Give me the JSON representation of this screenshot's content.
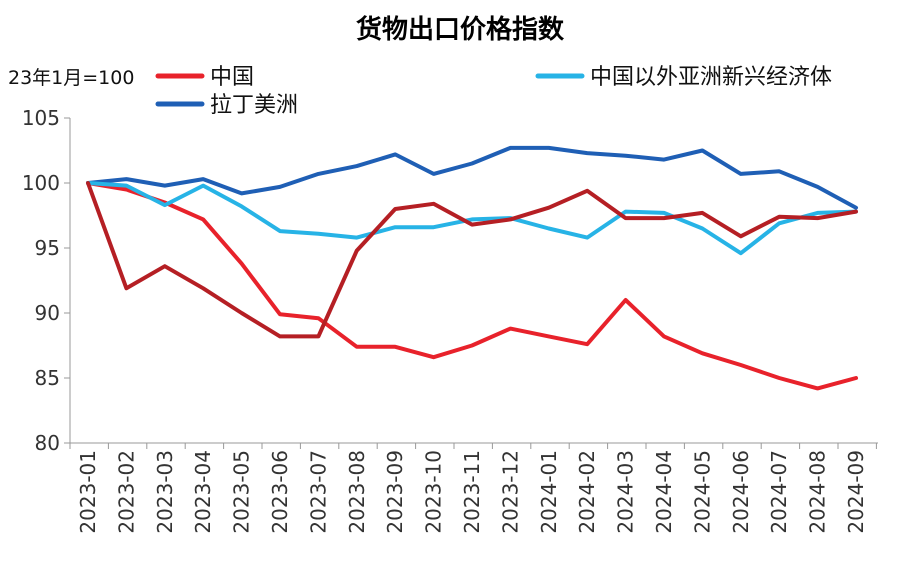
{
  "chart_data": {
    "type": "line",
    "title": "货物出口价格指数",
    "note": "23年1月=100",
    "xlabel": "",
    "ylabel": "",
    "ylim": [
      80,
      105
    ],
    "yticks": [
      80,
      85,
      90,
      95,
      100,
      105
    ],
    "grid": false,
    "legend_position": "top",
    "x": [
      "2023-01",
      "2023-02",
      "2023-03",
      "2023-04",
      "2023-05",
      "2023-06",
      "2023-07",
      "2023-08",
      "2023-09",
      "2023-10",
      "2023-11",
      "2023-12",
      "2024-01",
      "2024-02",
      "2024-03",
      "2024-04",
      "2024-05",
      "2024-06",
      "2024-07",
      "2024-08",
      "2024-09"
    ],
    "series": [
      {
        "name": "中国",
        "color": "#e8222b",
        "values": [
          100,
          99.5,
          98.5,
          97.2,
          93.8,
          89.9,
          89.6,
          87.4,
          87.4,
          86.6,
          87.5,
          88.8,
          88.2,
          87.6,
          91.0,
          88.2,
          86.9,
          86.0,
          85.0,
          84.2,
          85.0
        ]
      },
      {
        "name": "拉丁美洲",
        "color": "#1f5fb5",
        "values": [
          100,
          100.3,
          99.8,
          100.3,
          99.2,
          99.7,
          100.7,
          101.3,
          102.2,
          100.7,
          101.5,
          102.7,
          102.7,
          102.3,
          102.1,
          101.8,
          102.5,
          100.7,
          100.9,
          99.7,
          98.1
        ]
      },
      {
        "name": "中国以外亚洲新兴经济体",
        "color": "#27b3e6",
        "values": [
          100,
          99.8,
          98.3,
          99.8,
          98.2,
          96.3,
          96.1,
          95.8,
          96.6,
          96.6,
          97.2,
          97.3,
          96.5,
          95.8,
          97.8,
          97.7,
          96.5,
          94.6,
          96.9,
          97.7,
          97.8
        ]
      },
      {
        "name": "",
        "color": "#b51f24",
        "values": [
          100,
          91.9,
          93.6,
          91.9,
          90.0,
          88.2,
          88.2,
          94.8,
          98.0,
          98.4,
          96.8,
          97.2,
          98.1,
          99.4,
          97.3,
          97.3,
          97.7,
          95.9,
          97.4,
          97.3,
          97.8
        ]
      }
    ]
  }
}
